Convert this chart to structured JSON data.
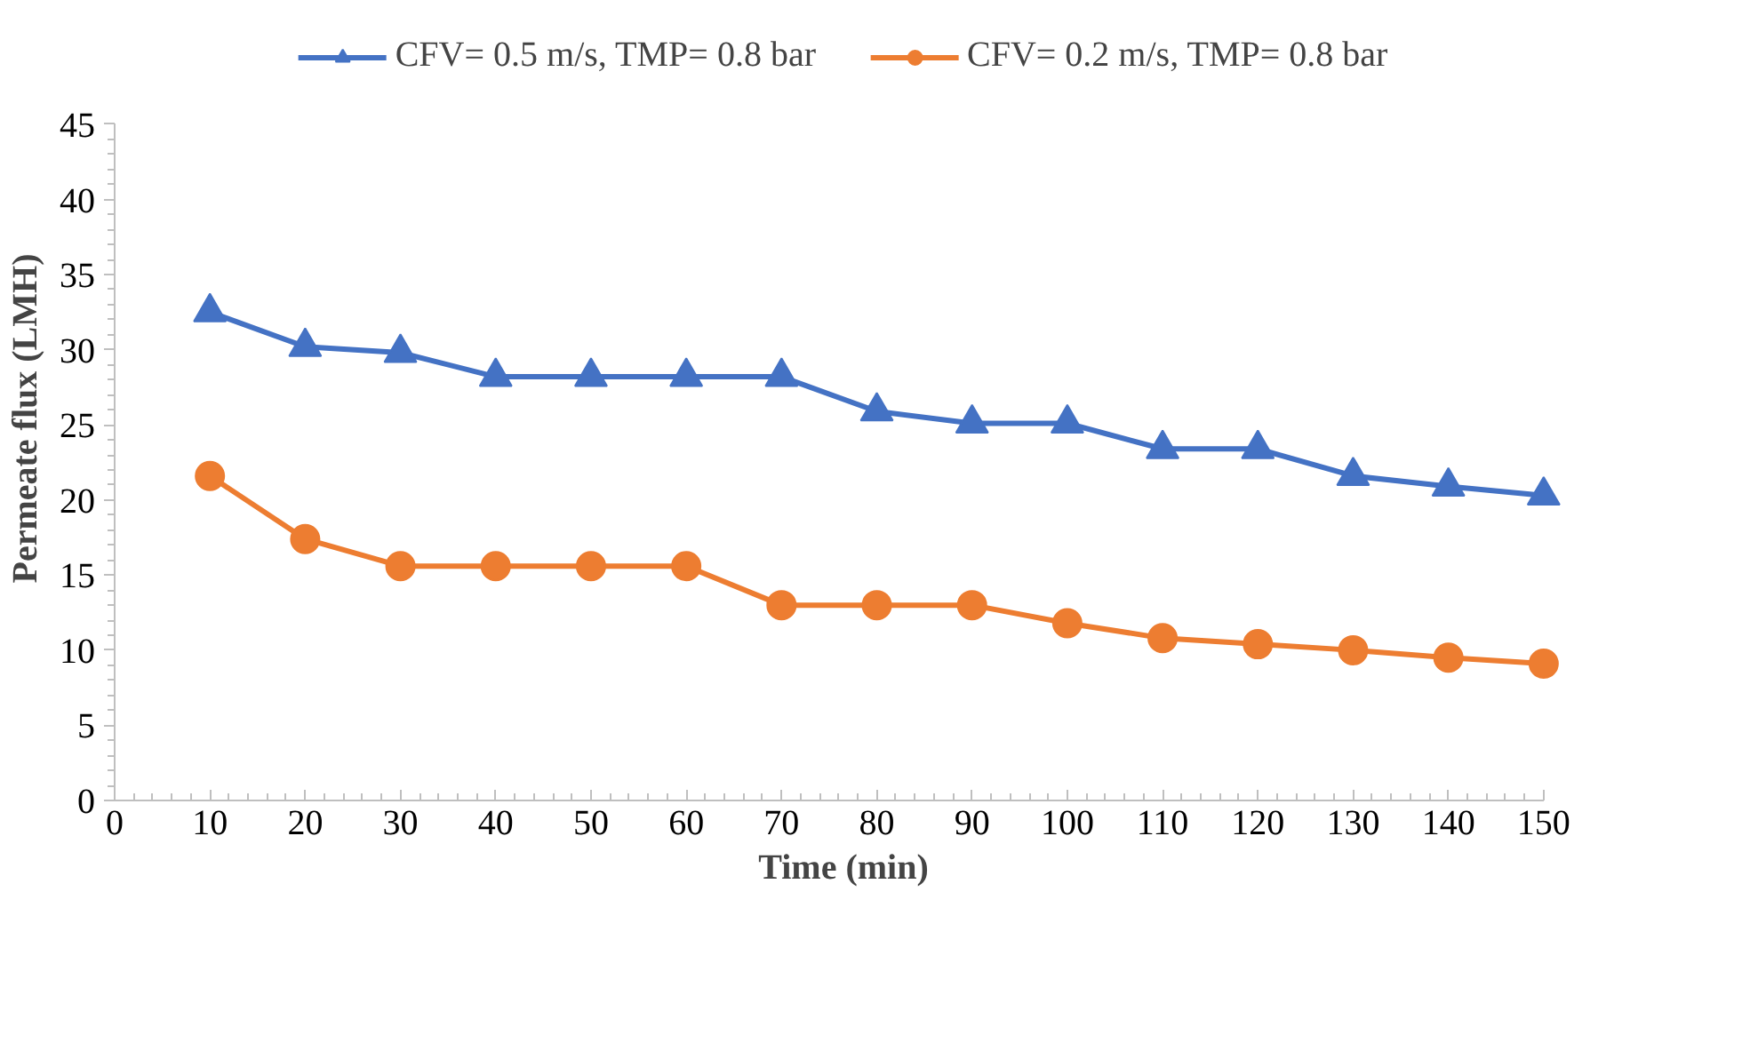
{
  "chart_data": {
    "type": "line",
    "xlabel": "Time (min)",
    "ylabel": "Permeate flux (LMH)",
    "x": [
      10,
      20,
      30,
      40,
      50,
      60,
      70,
      80,
      90,
      100,
      110,
      120,
      130,
      140,
      150
    ],
    "series": [
      {
        "name": "CFV= 0.5 m/s, TMP= 0.8 bar",
        "color": "#4472c4",
        "marker": "triangle",
        "values": [
          32.5,
          30.2,
          29.8,
          28.2,
          28.2,
          28.2,
          28.2,
          25.9,
          25.1,
          25.1,
          23.4,
          23.4,
          21.6,
          20.9,
          20.3
        ]
      },
      {
        "name": "CFV= 0.2 m/s, TMP= 0.8 bar",
        "color": "#ed7d31",
        "marker": "circle",
        "values": [
          21.6,
          17.4,
          15.6,
          15.6,
          15.6,
          15.6,
          13.0,
          13.0,
          13.0,
          11.8,
          10.8,
          10.4,
          10.0,
          9.5,
          9.1
        ]
      }
    ],
    "xlim": [
      0,
      150
    ],
    "xticks": [
      0,
      10,
      20,
      30,
      40,
      50,
      60,
      70,
      80,
      90,
      100,
      110,
      120,
      130,
      140,
      150
    ],
    "ylim": [
      0,
      45
    ],
    "yticks": [
      0,
      5,
      10,
      15,
      20,
      25,
      30,
      35,
      40,
      45
    ],
    "grid": false,
    "legend": "top",
    "line_style": "solid"
  }
}
